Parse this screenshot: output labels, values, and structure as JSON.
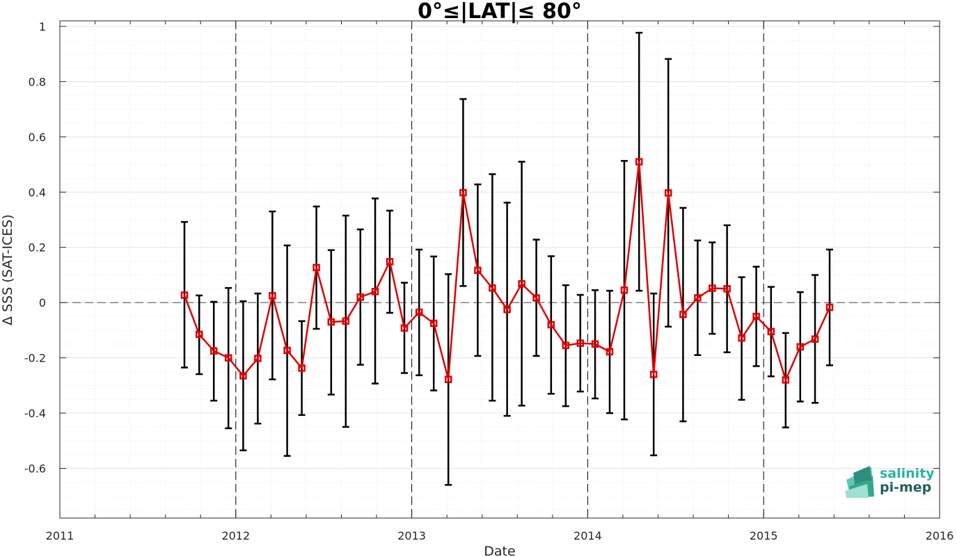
{
  "chart_data": {
    "type": "line",
    "title": "0°≤|LAT|≤ 80°",
    "xlabel": "Date",
    "ylabel": "Δ SSS (SAT-ICES)",
    "xlim": [
      2011,
      2016
    ],
    "ylim": [
      -0.78,
      1.02
    ],
    "x_ticks": [
      "2011",
      "2012",
      "2013",
      "2014",
      "2015",
      "2016"
    ],
    "y_ticks": [
      "1",
      "0.8",
      "0.6",
      "0.4",
      "0.2",
      "0",
      "-0.2",
      "-0.4",
      "-0.6"
    ],
    "grid": true,
    "reference_line": 0,
    "year_dividers": [
      2012,
      2013,
      2014,
      2015
    ],
    "series": [
      {
        "color": "#e00000",
        "errorbar_color": "#000000",
        "marker": "square",
        "points": [
          {
            "x": 2011.708,
            "y": 0.027,
            "lo": -0.235,
            "hi": 0.292
          },
          {
            "x": 2011.792,
            "y": -0.115,
            "lo": -0.259,
            "hi": 0.026
          },
          {
            "x": 2011.875,
            "y": -0.175,
            "lo": -0.355,
            "hi": 0.003
          },
          {
            "x": 2011.958,
            "y": -0.2,
            "lo": -0.455,
            "hi": 0.053
          },
          {
            "x": 2012.042,
            "y": -0.265,
            "lo": -0.535,
            "hi": 0.005
          },
          {
            "x": 2012.125,
            "y": -0.202,
            "lo": -0.438,
            "hi": 0.033
          },
          {
            "x": 2012.208,
            "y": 0.025,
            "lo": -0.278,
            "hi": 0.33
          },
          {
            "x": 2012.292,
            "y": -0.173,
            "lo": -0.555,
            "hi": 0.207
          },
          {
            "x": 2012.375,
            "y": -0.237,
            "lo": -0.407,
            "hi": -0.067
          },
          {
            "x": 2012.458,
            "y": 0.127,
            "lo": -0.095,
            "hi": 0.348
          },
          {
            "x": 2012.542,
            "y": -0.07,
            "lo": -0.333,
            "hi": 0.19
          },
          {
            "x": 2012.625,
            "y": -0.067,
            "lo": -0.45,
            "hi": 0.315
          },
          {
            "x": 2012.708,
            "y": 0.02,
            "lo": -0.225,
            "hi": 0.265
          },
          {
            "x": 2012.792,
            "y": 0.04,
            "lo": -0.293,
            "hi": 0.377
          },
          {
            "x": 2012.875,
            "y": 0.148,
            "lo": -0.037,
            "hi": 0.333
          },
          {
            "x": 2012.958,
            "y": -0.092,
            "lo": -0.255,
            "hi": 0.072
          },
          {
            "x": 2013.042,
            "y": -0.035,
            "lo": -0.263,
            "hi": 0.192
          },
          {
            "x": 2013.125,
            "y": -0.075,
            "lo": -0.318,
            "hi": 0.167
          },
          {
            "x": 2013.208,
            "y": -0.278,
            "lo": -0.66,
            "hi": 0.103
          },
          {
            "x": 2013.292,
            "y": 0.398,
            "lo": 0.06,
            "hi": 0.737
          },
          {
            "x": 2013.375,
            "y": 0.117,
            "lo": -0.193,
            "hi": 0.428
          },
          {
            "x": 2013.458,
            "y": 0.053,
            "lo": -0.355,
            "hi": 0.465
          },
          {
            "x": 2013.542,
            "y": -0.025,
            "lo": -0.41,
            "hi": 0.362
          },
          {
            "x": 2013.625,
            "y": 0.068,
            "lo": -0.373,
            "hi": 0.51
          },
          {
            "x": 2013.708,
            "y": 0.017,
            "lo": -0.193,
            "hi": 0.228
          },
          {
            "x": 2013.792,
            "y": -0.08,
            "lo": -0.33,
            "hi": 0.168
          },
          {
            "x": 2013.875,
            "y": -0.155,
            "lo": -0.375,
            "hi": 0.063
          },
          {
            "x": 2013.958,
            "y": -0.147,
            "lo": -0.322,
            "hi": 0.028
          },
          {
            "x": 2014.042,
            "y": -0.15,
            "lo": -0.347,
            "hi": 0.045
          },
          {
            "x": 2014.125,
            "y": -0.178,
            "lo": -0.4,
            "hi": 0.043
          },
          {
            "x": 2014.208,
            "y": 0.045,
            "lo": -0.423,
            "hi": 0.513
          },
          {
            "x": 2014.292,
            "y": 0.51,
            "lo": 0.043,
            "hi": 0.977
          },
          {
            "x": 2014.375,
            "y": -0.26,
            "lo": -0.553,
            "hi": 0.033
          },
          {
            "x": 2014.458,
            "y": 0.397,
            "lo": -0.087,
            "hi": 0.882
          },
          {
            "x": 2014.542,
            "y": -0.043,
            "lo": -0.43,
            "hi": 0.343
          },
          {
            "x": 2014.625,
            "y": 0.017,
            "lo": -0.19,
            "hi": 0.225
          },
          {
            "x": 2014.708,
            "y": 0.052,
            "lo": -0.113,
            "hi": 0.218
          },
          {
            "x": 2014.792,
            "y": 0.05,
            "lo": -0.18,
            "hi": 0.28
          },
          {
            "x": 2014.875,
            "y": -0.128,
            "lo": -0.352,
            "hi": 0.092
          },
          {
            "x": 2014.958,
            "y": -0.05,
            "lo": -0.23,
            "hi": 0.13
          },
          {
            "x": 2015.042,
            "y": -0.105,
            "lo": -0.267,
            "hi": 0.057
          },
          {
            "x": 2015.125,
            "y": -0.28,
            "lo": -0.452,
            "hi": -0.11
          },
          {
            "x": 2015.208,
            "y": -0.16,
            "lo": -0.358,
            "hi": 0.038
          },
          {
            "x": 2015.292,
            "y": -0.132,
            "lo": -0.363,
            "hi": 0.1
          },
          {
            "x": 2015.375,
            "y": -0.017,
            "lo": -0.227,
            "hi": 0.192
          }
        ]
      }
    ]
  },
  "logo": {
    "line1": "salinity",
    "line2": "pi-mep",
    "color1": "#2bb3a3",
    "color2": "#1f5f5a"
  }
}
